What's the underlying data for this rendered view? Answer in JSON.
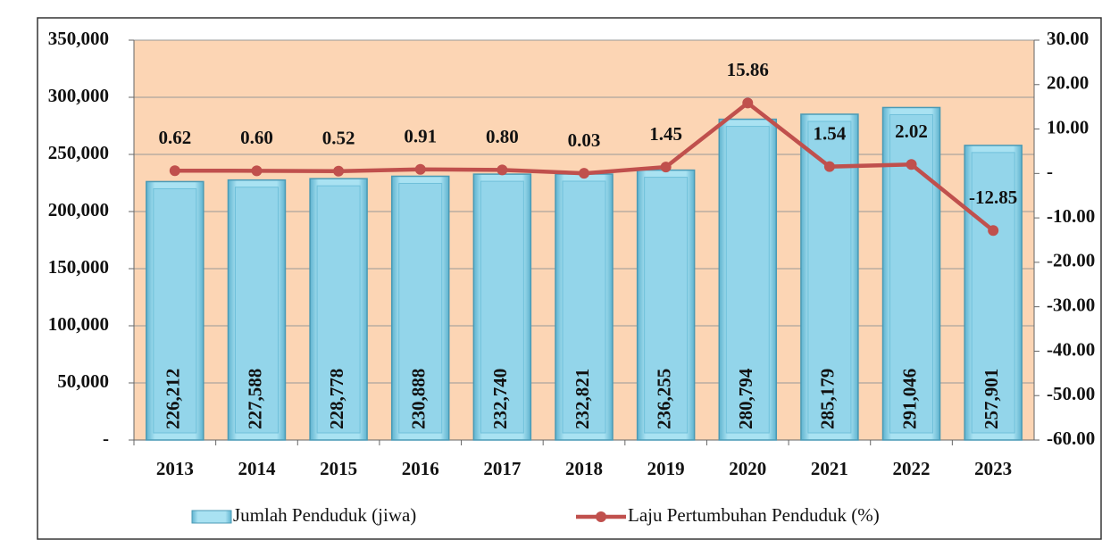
{
  "chart_data": {
    "type": "bar",
    "categories": [
      "2013",
      "2014",
      "2015",
      "2016",
      "2017",
      "2018",
      "2019",
      "2020",
      "2021",
      "2022",
      "2023"
    ],
    "series": [
      {
        "name": "Jumlah Penduduk (jiwa)",
        "type": "bar",
        "color": "#93d5ea",
        "values": [
          226212,
          227588,
          228778,
          230888,
          232740,
          232821,
          236255,
          280794,
          285179,
          291046,
          257901
        ],
        "value_labels": [
          "226,212",
          "227,588",
          "228,778",
          "230,888",
          "232,740",
          "232,821",
          "236,255",
          "280,794",
          "285,179",
          "291,046",
          "257,901"
        ]
      },
      {
        "name": "Laju Pertumbuhan Penduduk (%)",
        "type": "line",
        "axis": "y2",
        "color": "#c0504d",
        "values": [
          0.62,
          0.6,
          0.52,
          0.91,
          0.8,
          0.03,
          1.45,
          15.86,
          1.54,
          2.02,
          -12.85
        ],
        "value_labels": [
          "0.62",
          "0.60",
          "0.52",
          "0.91",
          "0.80",
          "0.03",
          "1.45",
          "15.86",
          "1.54",
          "2.02",
          "-12.85"
        ]
      }
    ],
    "ylim": [
      0,
      350000
    ],
    "yticks": [
      {
        "value": 0,
        "label": "-"
      },
      {
        "value": 50000,
        "label": "50,000"
      },
      {
        "value": 100000,
        "label": "100,000"
      },
      {
        "value": 150000,
        "label": "150,000"
      },
      {
        "value": 200000,
        "label": "200,000"
      },
      {
        "value": 250000,
        "label": "250,000"
      },
      {
        "value": 300000,
        "label": "300,000"
      },
      {
        "value": 350000,
        "label": "350,000"
      }
    ],
    "y2lim": [
      -60,
      30
    ],
    "y2ticks": [
      {
        "value": -60,
        "label": "-60.00"
      },
      {
        "value": -50,
        "label": "-50.00"
      },
      {
        "value": -40,
        "label": "-40.00"
      },
      {
        "value": -30,
        "label": "-30.00"
      },
      {
        "value": -20,
        "label": "-20.00"
      },
      {
        "value": -10,
        "label": "-10.00"
      },
      {
        "value": 0,
        "label": "-"
      },
      {
        "value": 10,
        "label": "10.00"
      },
      {
        "value": 20,
        "label": "20.00"
      },
      {
        "value": 30,
        "label": "30.00"
      }
    ],
    "grid": true,
    "legend": "bottom"
  }
}
